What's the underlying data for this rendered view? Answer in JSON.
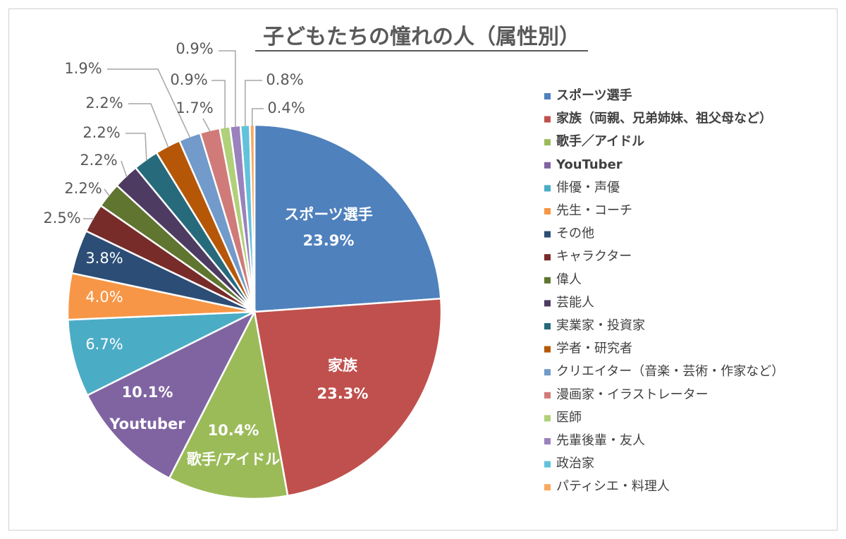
{
  "chart_data": {
    "type": "pie",
    "title": "子どもたちの憧れの人（属性別）",
    "legend_position": "right",
    "slices": [
      {
        "name": "スポーツ選手",
        "value": 23.9,
        "label": "23.9%",
        "inner_name": "スポーツ選手",
        "color": "#4f81bd",
        "bold": true
      },
      {
        "name": "家族（両親、兄弟姉妹、祖父母など）",
        "value": 23.3,
        "label": "23.3%",
        "inner_name": "家族",
        "color": "#c0504d",
        "bold": true
      },
      {
        "name": "歌手／アイドル",
        "value": 10.4,
        "label": "10.4%",
        "inner_name": "歌手/アイドル",
        "color": "#9bbb59",
        "bold": true
      },
      {
        "name": "YouTuber",
        "value": 10.1,
        "label": "10.1%",
        "inner_name": "Youtuber",
        "color": "#8064a2",
        "bold": true
      },
      {
        "name": "俳優・声優",
        "value": 6.7,
        "label": "6.7%",
        "color": "#4bacc6"
      },
      {
        "name": "先生・コーチ",
        "value": 4.0,
        "label": "4.0%",
        "color": "#f79646"
      },
      {
        "name": "その他",
        "value": 3.8,
        "label": "3.8%",
        "color": "#2c4d75"
      },
      {
        "name": "キャラクター",
        "value": 2.5,
        "label": "2.5%",
        "color": "#772c2a"
      },
      {
        "name": "偉人",
        "value": 2.2,
        "label": "2.2%",
        "color": "#5f7530"
      },
      {
        "name": "芸能人",
        "value": 2.2,
        "label": "2.2%",
        "color": "#4d3b62"
      },
      {
        "name": "実業家・投資家",
        "value": 2.2,
        "label": "2.2%",
        "color": "#276a7c"
      },
      {
        "name": "学者・研究者",
        "value": 2.2,
        "label": "2.2%",
        "color": "#b65708"
      },
      {
        "name": "クリエイター（音楽・芸術・作家など）",
        "value": 1.9,
        "label": "1.9%",
        "color": "#729aca"
      },
      {
        "name": "漫画家・イラストレーター",
        "value": 1.7,
        "label": "1.7%",
        "color": "#d07b79"
      },
      {
        "name": "医師",
        "value": 0.9,
        "label": "0.9%",
        "color": "#b0d07a"
      },
      {
        "name": "先輩後輩・友人",
        "value": 0.9,
        "label": "0.9%",
        "color": "#9a82bd"
      },
      {
        "name": "政治家",
        "value": 0.8,
        "label": "0.8%",
        "color": "#62c2dc"
      },
      {
        "name": "パティシエ・料理人",
        "value": 0.4,
        "label": "0.4%",
        "color": "#f9a95e"
      }
    ]
  }
}
